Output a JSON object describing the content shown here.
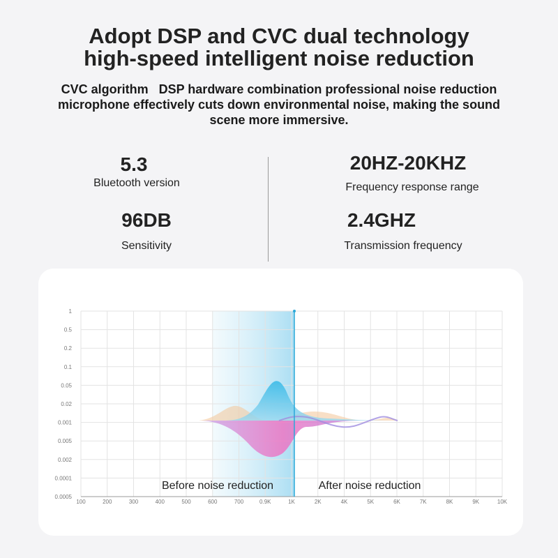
{
  "header": {
    "title_lines": [
      "Adopt DSP and CVC dual technology",
      "high-speed intelligent noise reduction"
    ],
    "subtitle_lines": [
      "CVC algorithm   DSP hardware combination professional noise reduction",
      "microphone effectively cuts down environmental noise, making the sound",
      "scene more immersive."
    ]
  },
  "specs": [
    {
      "value": "5.3",
      "label": "Bluetooth version"
    },
    {
      "value": "20HZ-20KHZ",
      "label": "Frequency response range"
    },
    {
      "value": "96DB",
      "label": "Sensitivity"
    },
    {
      "value": "2.4GHZ",
      "label": "Transmission frequency"
    }
  ],
  "graph": {
    "y_labels": [
      "1",
      "0.5",
      "0.2",
      "0.1",
      "0.05",
      "0.02",
      "0.001",
      "0.005",
      "0.002",
      "0.0001",
      "0.0005"
    ],
    "x_labels": [
      "100",
      "200",
      "300",
      "400",
      "500",
      "600",
      "700",
      "0.9K",
      "1K",
      "2K",
      "4K",
      "5K",
      "6K",
      "7K",
      "8K",
      "9K",
      "10K"
    ],
    "before_label": "Before noise reduction",
    "after_label": "After noise reduction"
  }
}
